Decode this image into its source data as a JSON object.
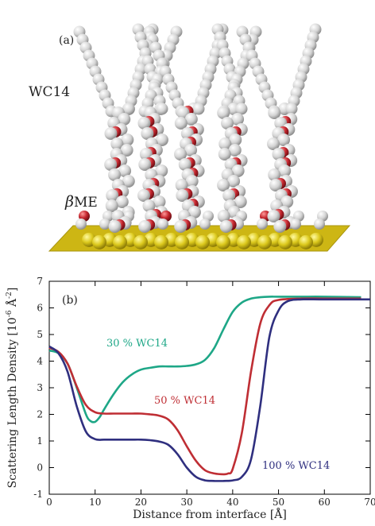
{
  "panel_a": {
    "label": "(a)",
    "wc14_label": "WC14",
    "bme_symbol": "β",
    "bme_text": "ME",
    "colors": {
      "carbon": "#d6d6d6",
      "oxygen": "#c4262e",
      "sulfur": "#d9c81e",
      "gold_substrate": "#cdb614"
    }
  },
  "panel_b_label": "(b)",
  "chart_data": {
    "type": "line",
    "xlabel": "Distance from interface [Å]",
    "ylabel_main": "Scattering Length Density [10",
    "ylabel_exp": "-6",
    "ylabel_unit": " Å",
    "ylabel_unit_exp": "-2",
    "ylabel_close": "]",
    "xlim": [
      0,
      70
    ],
    "ylim": [
      -1,
      7
    ],
    "xticks": [
      "0",
      "10",
      "20",
      "30",
      "40",
      "50",
      "60",
      "70"
    ],
    "yticks": [
      "-1",
      "0",
      "1",
      "2",
      "3",
      "4",
      "5",
      "6",
      "7"
    ],
    "grid": false,
    "series": [
      {
        "name": "30 % WC14",
        "color": "#1ea787",
        "x": [
          0,
          2,
          4,
          6,
          8,
          9,
          10,
          11,
          12,
          14,
          16,
          18,
          20,
          22,
          24,
          26,
          28,
          30,
          32,
          34,
          36,
          38,
          40,
          42,
          44,
          46,
          48,
          50,
          55,
          60,
          68
        ],
        "y": [
          4.4,
          4.3,
          3.9,
          3.0,
          2.0,
          1.75,
          1.72,
          1.9,
          2.2,
          2.75,
          3.2,
          3.5,
          3.68,
          3.75,
          3.8,
          3.8,
          3.8,
          3.82,
          3.88,
          4.05,
          4.5,
          5.2,
          5.85,
          6.2,
          6.35,
          6.4,
          6.42,
          6.42,
          6.42,
          6.42,
          6.4
        ]
      },
      {
        "name": "50 % WC14",
        "color": "#bf2e34",
        "x": [
          0,
          2,
          4,
          6,
          8,
          10,
          12,
          14,
          16,
          18,
          20,
          22,
          24,
          26,
          28,
          30,
          32,
          34,
          36,
          38,
          39,
          40,
          42,
          44,
          46,
          48,
          50,
          55,
          60,
          68
        ],
        "y": [
          4.5,
          4.35,
          3.9,
          3.05,
          2.35,
          2.08,
          2.03,
          2.03,
          2.03,
          2.03,
          2.03,
          2.0,
          1.95,
          1.8,
          1.4,
          0.8,
          0.25,
          -0.1,
          -0.22,
          -0.25,
          -0.22,
          -0.05,
          1.3,
          3.6,
          5.4,
          6.1,
          6.3,
          6.35,
          6.35,
          6.35
        ]
      },
      {
        "name": "100 % WC14",
        "color": "#2f2f7f",
        "x": [
          0,
          2,
          4,
          6,
          8,
          10,
          12,
          14,
          16,
          18,
          20,
          22,
          24,
          26,
          28,
          30,
          32,
          34,
          36,
          38,
          40,
          42,
          44,
          46,
          48,
          50,
          52,
          55,
          60,
          70
        ],
        "y": [
          4.55,
          4.3,
          3.6,
          2.3,
          1.35,
          1.07,
          1.05,
          1.05,
          1.05,
          1.05,
          1.05,
          1.03,
          0.98,
          0.85,
          0.5,
          0.0,
          -0.35,
          -0.48,
          -0.5,
          -0.5,
          -0.48,
          -0.35,
          0.3,
          2.3,
          4.9,
          5.9,
          6.25,
          6.32,
          6.32,
          6.32
        ]
      }
    ]
  }
}
